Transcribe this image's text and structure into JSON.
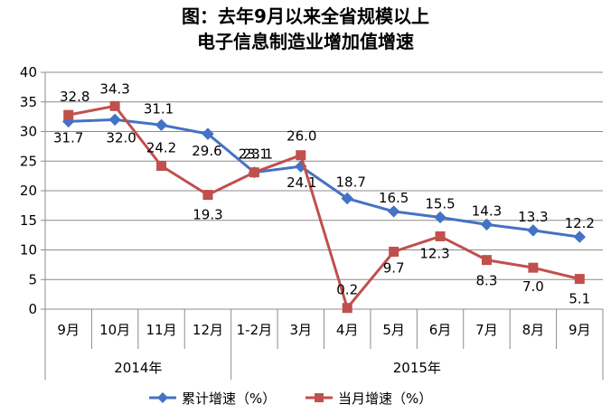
{
  "title": {
    "line1": "图：去年9月以来全省规模以上",
    "line2": "电子信息制造业增加值增速"
  },
  "chart_data": {
    "type": "line",
    "categories": [
      "9月",
      "10月",
      "11月",
      "12月",
      "1-2月",
      "3月",
      "4月",
      "5月",
      "6月",
      "7月",
      "8月",
      "9月"
    ],
    "year_groups": [
      {
        "label": "2014年",
        "from": 0,
        "to": 3
      },
      {
        "label": "2015年",
        "from": 4,
        "to": 11
      }
    ],
    "ylim": [
      0,
      40
    ],
    "yticks": [
      0,
      5,
      10,
      15,
      20,
      25,
      30,
      35,
      40
    ],
    "grid": true,
    "legend_position": "bottom",
    "series": [
      {
        "name": "累计增速（%）",
        "color": "#4472C4",
        "marker": "diamond",
        "values": [
          31.7,
          32.0,
          31.1,
          29.6,
          23.1,
          24.1,
          18.7,
          16.5,
          15.5,
          14.3,
          13.3,
          12.2
        ],
        "labels": [
          "31.7",
          "32.0",
          "31.1",
          "29.6",
          "23.1",
          "24.1",
          "18.7",
          "16.5",
          "15.5",
          "14.3",
          "13.3",
          "12.2"
        ]
      },
      {
        "name": "当月增速（%）",
        "color": "#C0504D",
        "marker": "square",
        "values": [
          32.8,
          34.3,
          24.2,
          19.3,
          23.1,
          26.0,
          0.2,
          9.7,
          12.3,
          8.3,
          7.0,
          5.1
        ],
        "labels": [
          "32.8",
          "34.3",
          "24.2",
          "19.3",
          "23.1",
          "26.0",
          "0.2",
          "9.7",
          "12.3",
          "8.3",
          "7.0",
          "5.1"
        ]
      }
    ]
  }
}
